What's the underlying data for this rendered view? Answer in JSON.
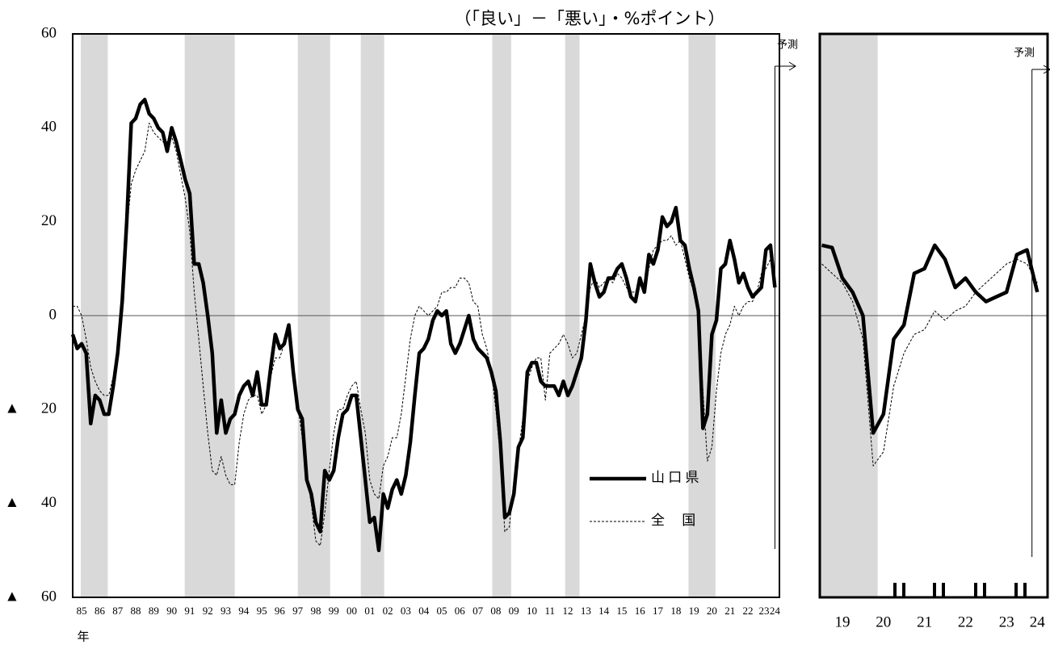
{
  "chart_data": [
    {
      "type": "line",
      "unit_note": "（「良い」－「悪い」・%ポイント）",
      "x_label": "年",
      "forecast_label": "予測",
      "forecast_x": 2024,
      "reference_line": 0,
      "xlim": [
        1985,
        2024.25
      ],
      "ylim": [
        -60,
        60
      ],
      "yticks": [
        60,
        40,
        20,
        0,
        {
          "value": -20,
          "label": "▲ 20"
        },
        {
          "value": -40,
          "label": "▲ 40"
        },
        {
          "value": -60,
          "label": "▲ 60"
        }
      ],
      "xticks": [
        {
          "value": 1985.5,
          "label": "85"
        },
        {
          "value": 1986.5,
          "label": "86"
        },
        {
          "value": 1987.5,
          "label": "87"
        },
        {
          "value": 1988.5,
          "label": "88"
        },
        {
          "value": 1989.5,
          "label": "89"
        },
        {
          "value": 1990.5,
          "label": "90"
        },
        {
          "value": 1991.5,
          "label": "91"
        },
        {
          "value": 1992.5,
          "label": "92"
        },
        {
          "value": 1993.5,
          "label": "93"
        },
        {
          "value": 1994.5,
          "label": "94"
        },
        {
          "value": 1995.5,
          "label": "95"
        },
        {
          "value": 1996.5,
          "label": "96"
        },
        {
          "value": 1997.5,
          "label": "97"
        },
        {
          "value": 1998.5,
          "label": "98"
        },
        {
          "value": 1999.5,
          "label": "99"
        },
        {
          "value": 2000.5,
          "label": "00"
        },
        {
          "value": 2001.5,
          "label": "01"
        },
        {
          "value": 2002.5,
          "label": "02"
        },
        {
          "value": 2003.5,
          "label": "03"
        },
        {
          "value": 2004.5,
          "label": "04"
        },
        {
          "value": 2005.5,
          "label": "05"
        },
        {
          "value": 2006.5,
          "label": "06"
        },
        {
          "value": 2007.5,
          "label": "07"
        },
        {
          "value": 2008.5,
          "label": "08"
        },
        {
          "value": 2009.5,
          "label": "09"
        },
        {
          "value": 2010.5,
          "label": "10"
        },
        {
          "value": 2011.5,
          "label": "11"
        },
        {
          "value": 2012.5,
          "label": "12"
        },
        {
          "value": 2013.5,
          "label": "13"
        },
        {
          "value": 2014.5,
          "label": "14"
        },
        {
          "value": 2015.5,
          "label": "15"
        },
        {
          "value": 2016.5,
          "label": "16"
        },
        {
          "value": 2017.5,
          "label": "17"
        },
        {
          "value": 2018.5,
          "label": "18"
        },
        {
          "value": 2019.5,
          "label": "19"
        },
        {
          "value": 2020.5,
          "label": "20"
        },
        {
          "value": 2021.5,
          "label": "21"
        },
        {
          "value": 2022.5,
          "label": "22"
        },
        {
          "value": 2023.4,
          "label": "23"
        },
        {
          "value": 2024,
          "label": "24"
        }
      ],
      "shaded_periods": [
        [
          1985.45,
          1986.95
        ],
        [
          1991.22,
          1994.0
        ],
        [
          1997.5,
          1999.3
        ],
        [
          2001.0,
          2002.3
        ],
        [
          2008.3,
          2009.35
        ],
        [
          2012.35,
          2013.15
        ],
        [
          2019.2,
          2020.7
        ]
      ],
      "x": [
        1985,
        1985.25,
        1985.5,
        1985.75,
        1986,
        1986.25,
        1986.5,
        1986.75,
        1987,
        1987.25,
        1987.5,
        1987.75,
        1988,
        1988.25,
        1988.5,
        1988.75,
        1989,
        1989.25,
        1989.5,
        1989.75,
        1990,
        1990.25,
        1990.5,
        1990.75,
        1991,
        1991.25,
        1991.5,
        1991.75,
        1992,
        1992.25,
        1992.5,
        1992.75,
        1993,
        1993.25,
        1993.5,
        1993.75,
        1994,
        1994.25,
        1994.5,
        1994.75,
        1995,
        1995.25,
        1995.5,
        1995.75,
        1996,
        1996.25,
        1996.5,
        1996.75,
        1997,
        1997.25,
        1997.5,
        1997.75,
        1998,
        1998.25,
        1998.5,
        1998.75,
        1999,
        1999.25,
        1999.5,
        1999.75,
        2000,
        2000.25,
        2000.5,
        2000.75,
        2001,
        2001.25,
        2001.5,
        2001.75,
        2002,
        2002.25,
        2002.5,
        2002.75,
        2003,
        2003.25,
        2003.5,
        2003.75,
        2004,
        2004.25,
        2004.5,
        2004.75,
        2005,
        2005.25,
        2005.5,
        2005.75,
        2006,
        2006.25,
        2006.5,
        2006.75,
        2007,
        2007.25,
        2007.5,
        2007.75,
        2008,
        2008.25,
        2008.5,
        2008.75,
        2009,
        2009.25,
        2009.5,
        2009.75,
        2010,
        2010.25,
        2010.5,
        2010.75,
        2011,
        2011.25,
        2011.5,
        2011.75,
        2012,
        2012.25,
        2012.5,
        2012.75,
        2013,
        2013.25,
        2013.5,
        2013.75,
        2014,
        2014.25,
        2014.5,
        2014.75,
        2015,
        2015.25,
        2015.5,
        2015.75,
        2016,
        2016.25,
        2016.5,
        2016.75,
        2017,
        2017.25,
        2017.5,
        2017.75,
        2018,
        2018.25,
        2018.5,
        2018.75,
        2019,
        2019.25,
        2019.5,
        2019.75,
        2020,
        2020.25,
        2020.5,
        2020.75,
        2021,
        2021.25,
        2021.5,
        2021.75,
        2022,
        2022.25,
        2022.5,
        2022.75,
        2023,
        2023.25,
        2023.5,
        2023.75,
        2024
      ],
      "series": [
        {
          "name": "山 口 県",
          "color": "#000000",
          "style": "solid",
          "values": [
            -4,
            -7,
            -6,
            -8,
            -23,
            -17,
            -18,
            -21,
            -21,
            -15,
            -8,
            3,
            20,
            41,
            42,
            45,
            46,
            43,
            42,
            40,
            39,
            35,
            40,
            37,
            33,
            29,
            26,
            11,
            11,
            7,
            0,
            -8,
            -25,
            -18,
            -25,
            -22,
            -21,
            -17,
            -15,
            -14,
            -17,
            -12,
            -19,
            -19,
            -11,
            -4,
            -7,
            -6,
            -2,
            -12,
            -20,
            -22,
            -35,
            -38,
            -44,
            -46,
            -33,
            -35,
            -33,
            -26,
            -21,
            -20,
            -17,
            -17,
            -26,
            -35,
            -44,
            -43,
            -50,
            -38,
            -41,
            -37,
            -35,
            -38,
            -34,
            -27,
            -17,
            -8,
            -7,
            -5,
            -1,
            1,
            0,
            1,
            -6,
            -8,
            -6,
            -3,
            0,
            -5,
            -7,
            -8,
            -9,
            -12,
            -16,
            -27,
            -43,
            -42,
            -38,
            -28,
            -26,
            -12,
            -10,
            -10,
            -14,
            -15,
            -15,
            -15,
            -17,
            -14,
            -17,
            -15,
            -12,
            -9,
            -1,
            11,
            7,
            4,
            5,
            8,
            8,
            10,
            11,
            8,
            4,
            3,
            8,
            5,
            13,
            11,
            14,
            21,
            19,
            20,
            23,
            16,
            15,
            10,
            6,
            1,
            -24,
            -21,
            -4,
            -1,
            10,
            11,
            16,
            12,
            7,
            9,
            6,
            4,
            5,
            6,
            14,
            15,
            6
          ]
        },
        {
          "name": "全 　国",
          "color": "#000000",
          "style": "dashed",
          "values": [
            2,
            2,
            0,
            -5,
            -11,
            -14,
            -16,
            -17,
            -17,
            -13,
            -6,
            5,
            18,
            28,
            31,
            33,
            35,
            41,
            39,
            38,
            37,
            37,
            38,
            35,
            30,
            25,
            18,
            5,
            -5,
            -15,
            -25,
            -33,
            -34,
            -30,
            -34,
            -36,
            -36,
            -27,
            -21,
            -18,
            -17,
            -17,
            -21,
            -19,
            -13,
            -9,
            -9,
            -6,
            -4,
            -13,
            -19,
            -26,
            -34,
            -40,
            -48,
            -49,
            -42,
            -33,
            -25,
            -20,
            -20,
            -17,
            -15,
            -14,
            -20,
            -25,
            -35,
            -38,
            -39,
            -32,
            -30,
            -26,
            -26,
            -21,
            -13,
            -5,
            0,
            2,
            1,
            0,
            1,
            2,
            5,
            5,
            6,
            6,
            8,
            8,
            7,
            3,
            2,
            -4,
            -7,
            -12,
            -20,
            -30,
            -46,
            -45,
            -35,
            -29,
            -22,
            -14,
            -11,
            -9,
            -9,
            -18,
            -8,
            -7,
            -6,
            -4,
            -6,
            -9,
            -8,
            -4,
            0,
            6,
            8,
            6,
            7,
            8,
            7,
            9,
            8,
            6,
            5,
            5,
            7,
            6,
            10,
            14,
            15,
            16,
            16,
            17,
            15,
            16,
            12,
            8,
            5,
            1,
            -16,
            -31,
            -28,
            -16,
            -8,
            -4,
            -2,
            2,
            0,
            2,
            3,
            3,
            5,
            9,
            10,
            12,
            8
          ]
        }
      ]
    },
    {
      "type": "line",
      "forecast_label": "予測",
      "forecast_x": 2024.12,
      "reference_line": 0,
      "xlim": [
        2018.95,
        2024.5
      ],
      "ylim": [
        -60,
        60
      ],
      "xticks": [
        {
          "value": 2019.5,
          "label": "19"
        },
        {
          "value": 2020.5,
          "label": "20"
        },
        {
          "value": 2021.5,
          "label": "21"
        },
        {
          "value": 2022.5,
          "label": "22"
        },
        {
          "value": 2023.5,
          "label": "23"
        },
        {
          "value": 2024.25,
          "label": "24"
        }
      ],
      "shaded_periods": [
        [
          2018.95,
          2020.36
        ]
      ],
      "x": [
        2019,
        2019.25,
        2019.5,
        2019.75,
        2020,
        2020.25,
        2020.5,
        2020.75,
        2021,
        2021.25,
        2021.5,
        2021.75,
        2022,
        2022.25,
        2022.5,
        2022.75,
        2023,
        2023.25,
        2023.5,
        2023.75,
        2024,
        2024.25
      ],
      "series": [
        {
          "name": "山 口 県",
          "color": "#000000",
          "style": "solid",
          "values": [
            15,
            14.5,
            8,
            5,
            0,
            -25,
            -21,
            -5,
            -2,
            9,
            10,
            15,
            12,
            6,
            8,
            5,
            3,
            4,
            5,
            13,
            14,
            5
          ]
        },
        {
          "name": "全 　国",
          "color": "#000000",
          "style": "dashed",
          "values": [
            11,
            9,
            7,
            3,
            -5,
            -32,
            -29,
            -15,
            -8,
            -4,
            -3,
            1,
            -1,
            1,
            2,
            5,
            7,
            9,
            11,
            12,
            11,
            7
          ]
        }
      ]
    }
  ]
}
